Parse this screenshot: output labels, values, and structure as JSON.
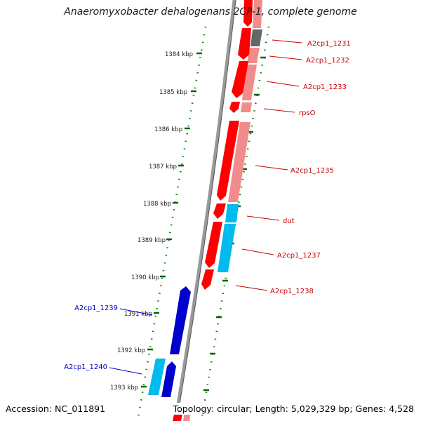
{
  "title": "Anaeromyxobacter dehalogenans 2CP-1, complete genome",
  "footer": {
    "accession": "Accession: NC_011891",
    "topology": "Topology: circular; Length: 5,029,329 bp; Genes: 4,528"
  },
  "colors": {
    "forward_gene": "#ff0000",
    "forward_gene_light": "#f28c8c",
    "reverse_gene": "#0000cc",
    "reverse_gene_light": "#00bbee",
    "backbone": "#888888",
    "tick_dots": "#008000",
    "forward_label": "#cc0000",
    "reverse_label": "#0000cc"
  },
  "kbp_ticks": [
    "1384 kbp",
    "1385 kbp",
    "1386 kbp",
    "1387 kbp",
    "1388 kbp",
    "1389 kbp",
    "1390 kbp",
    "1391 kbp",
    "1392 kbp",
    "1393 kbp"
  ],
  "forward_genes": [
    {
      "label": "A2cp1_1231"
    },
    {
      "label": "A2cp1_1232"
    },
    {
      "label": "A2cp1_1233"
    },
    {
      "label": "rpsO"
    },
    {
      "label": "A2cp1_1235"
    },
    {
      "label": "dut"
    },
    {
      "label": "A2cp1_1237"
    },
    {
      "label": "A2cp1_1238"
    }
  ],
  "reverse_genes": [
    {
      "label": "A2cp1_1239"
    },
    {
      "label": "A2cp1_1240"
    }
  ]
}
